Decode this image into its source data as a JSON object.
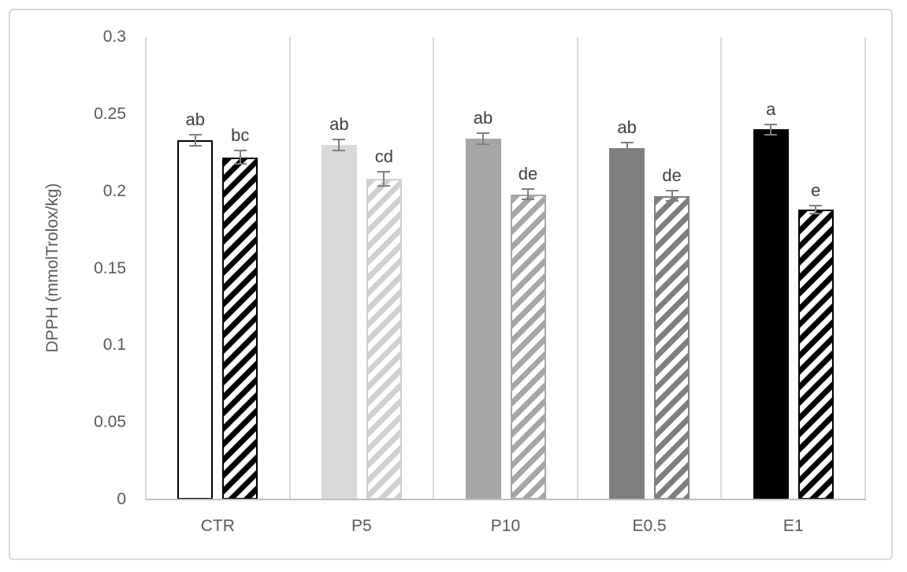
{
  "window": {
    "background": "#ffffff",
    "frame_border_color": "#d9d9d9"
  },
  "chart_data": {
    "type": "bar",
    "title": "",
    "xlabel": "",
    "ylabel": "DPPH (mmolTrolox/kg)",
    "ylim": [
      0,
      0.3
    ],
    "yticks": [
      0,
      0.05,
      0.1,
      0.15,
      0.2,
      0.25,
      0.3
    ],
    "ytick_labels": [
      "0",
      "0.05",
      "0.1",
      "0.15",
      "0.2",
      "0.25",
      "0.3"
    ],
    "categories": [
      "CTR",
      "P5",
      "P10",
      "E0.5",
      "E1"
    ],
    "grid": "vertical category separator lines only",
    "legend_position": "none",
    "series": [
      {
        "name": "solid",
        "pattern": "solid",
        "values": [
          0.233,
          0.23,
          0.234,
          0.228,
          0.24
        ],
        "errors": [
          0.004,
          0.004,
          0.004,
          0.004,
          0.004
        ],
        "letters": [
          "ab",
          "ab",
          "ab",
          "ab",
          "a"
        ],
        "fill_colors": [
          "#ffffff",
          "#d9d9d9",
          "#a6a6a6",
          "#7f7f7f",
          "#000000"
        ],
        "border_colors": [
          "#000000",
          "",
          "",
          "",
          ""
        ]
      },
      {
        "name": "hatched",
        "pattern": "diagonal-stripes-upward",
        "values": [
          0.222,
          0.208,
          0.198,
          0.197,
          0.188
        ],
        "errors": [
          0.005,
          0.005,
          0.004,
          0.004,
          0.003
        ],
        "letters": [
          "bc",
          "cd",
          "de",
          "de",
          "e"
        ],
        "stripe_colors": [
          "#000000",
          "#cfcfcf",
          "#a6a6a6",
          "#7f7f7f",
          "#000000"
        ],
        "stripe_background": "#ffffff"
      }
    ],
    "annotation_color": "#3f3f3f",
    "axis_text_color": "#595959",
    "gridline_color": "#d9d9d9",
    "axis_line_color": "#bfbfbf",
    "error_bar_color": "#7f7f7f"
  }
}
